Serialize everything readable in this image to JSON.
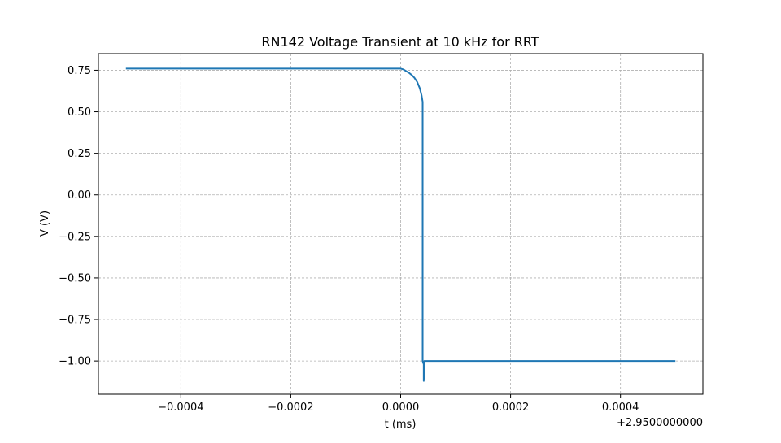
{
  "chart_data": {
    "type": "line",
    "title": "RN142 Voltage Transient at 10 kHz for RRT",
    "xlabel": "t (ms)",
    "ylabel": "V (V)",
    "x_offset_label": "+2.9500000000",
    "x_offset": 2.95,
    "xlim": [
      -0.00055,
      0.00055
    ],
    "ylim": [
      -1.2,
      0.85
    ],
    "x_ticks": [
      -0.0004,
      -0.0002,
      0.0,
      0.0002,
      0.0004
    ],
    "x_tick_labels": [
      "−0.0004",
      "−0.0002",
      "0.0000",
      "0.0002",
      "0.0004"
    ],
    "y_ticks": [
      0.75,
      0.5,
      0.25,
      0.0,
      -0.25,
      -0.5,
      -0.75,
      -1.0
    ],
    "y_tick_labels": [
      "0.75",
      "0.50",
      "0.25",
      "0.00",
      "−0.25",
      "−0.50",
      "−0.75",
      "−1.00"
    ],
    "grid": true,
    "series": [
      {
        "color": "#1f77b4",
        "x": [
          -0.0005,
          0.0,
          5e-06,
          1e-05,
          1.5e-05,
          2e-05,
          2.5e-05,
          3e-05,
          3.5e-05,
          3.8e-05,
          4e-05,
          4e-05,
          4.2e-05,
          4.2e-05,
          4.3e-05,
          4.3e-05,
          0.0005
        ],
        "y": [
          0.76,
          0.76,
          0.755,
          0.745,
          0.735,
          0.722,
          0.705,
          0.68,
          0.64,
          0.6,
          0.56,
          -1.0,
          -1.02,
          -1.12,
          -1.05,
          -1.0,
          -1.0
        ]
      }
    ]
  }
}
